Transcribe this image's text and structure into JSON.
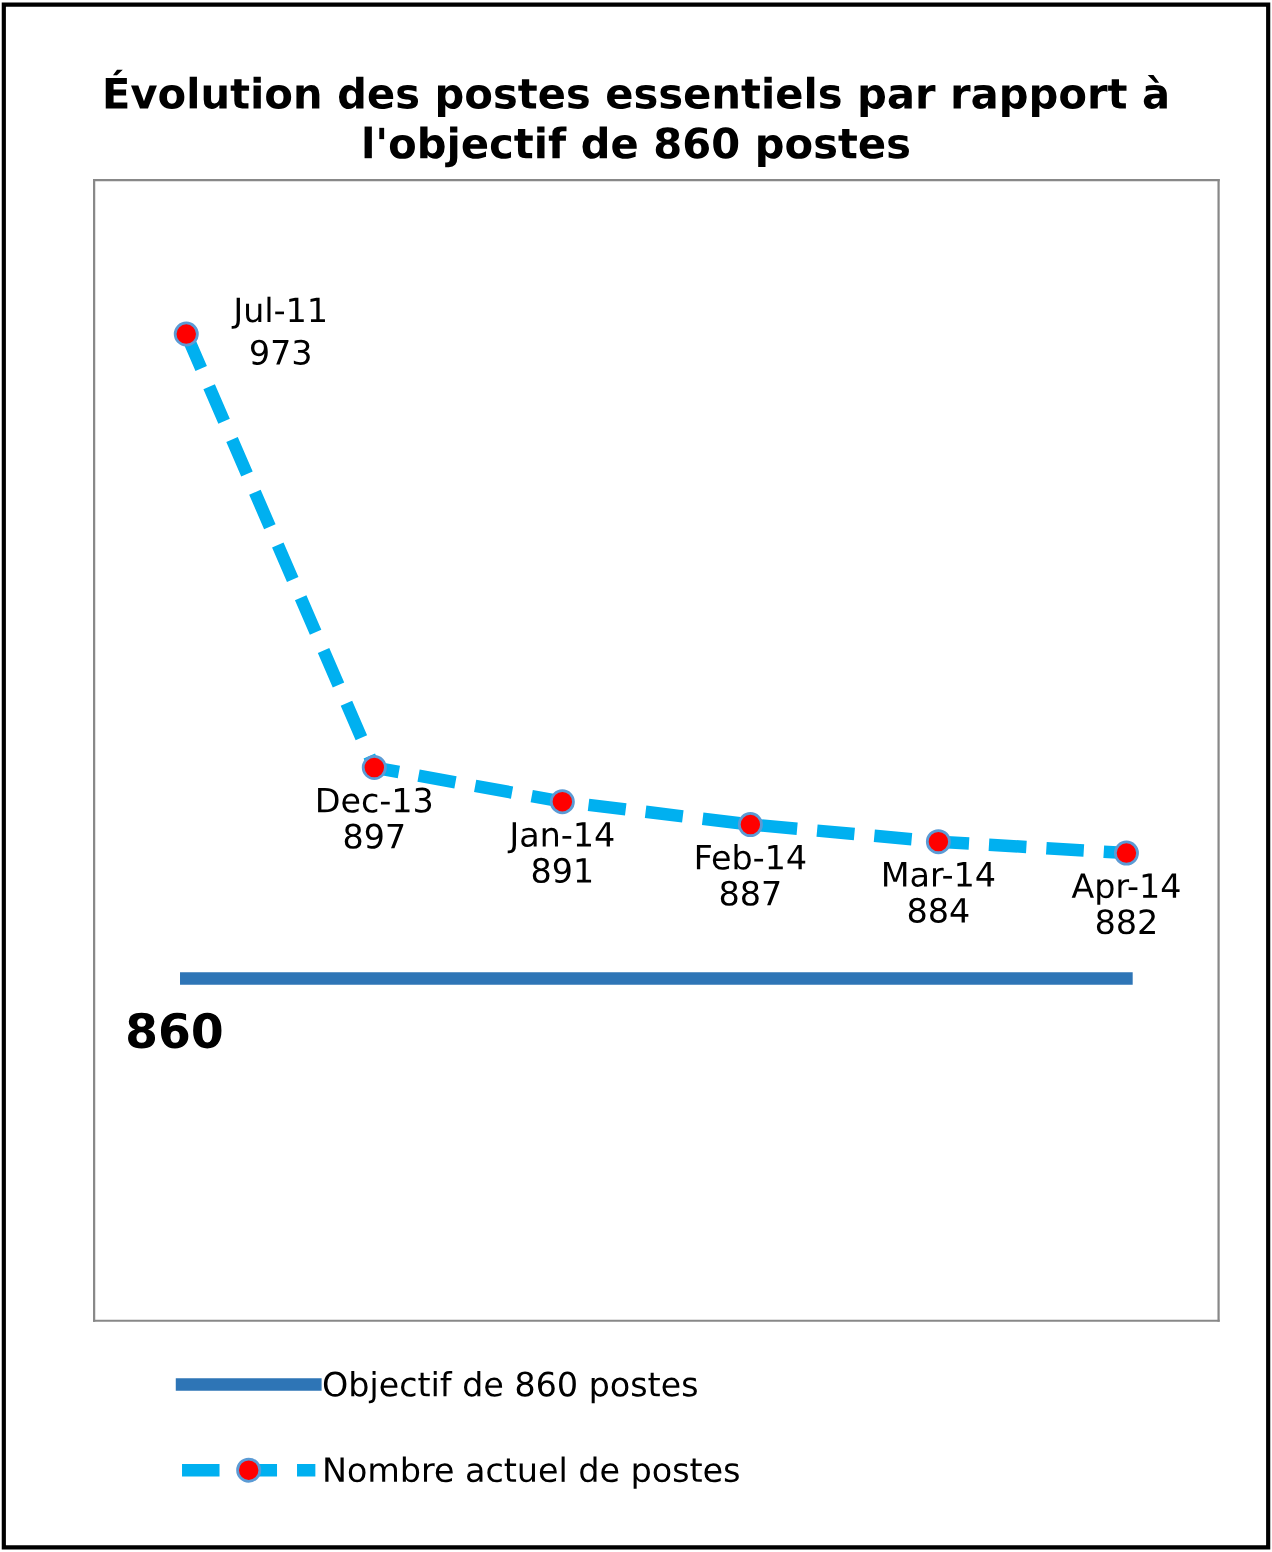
{
  "chart_data": {
    "type": "line",
    "title": "Évolution des postes essentiels par rapport à l'objectif de 860 postes",
    "categories": [
      "Jul-11",
      "Dec-13",
      "Jan-14",
      "Feb-14",
      "Mar-14",
      "Apr-14"
    ],
    "series": [
      {
        "name": "Objectif de 860 postes",
        "color": "#2e75b6",
        "values": [
          860,
          860,
          860,
          860,
          860,
          860
        ],
        "marker": "none",
        "line_style": "solid",
        "value_labels": [
          "860",
          null,
          null,
          null,
          null,
          null
        ]
      },
      {
        "name": "Nombre actuel de postes",
        "color": "#00b0f0",
        "values": [
          973,
          897,
          891,
          887,
          884,
          882
        ],
        "marker": "circle",
        "line_style": "dashed"
      }
    ],
    "ylim": [
      800,
      1000
    ],
    "tick_labels": false,
    "data_labels": true,
    "legend": "bottom"
  }
}
